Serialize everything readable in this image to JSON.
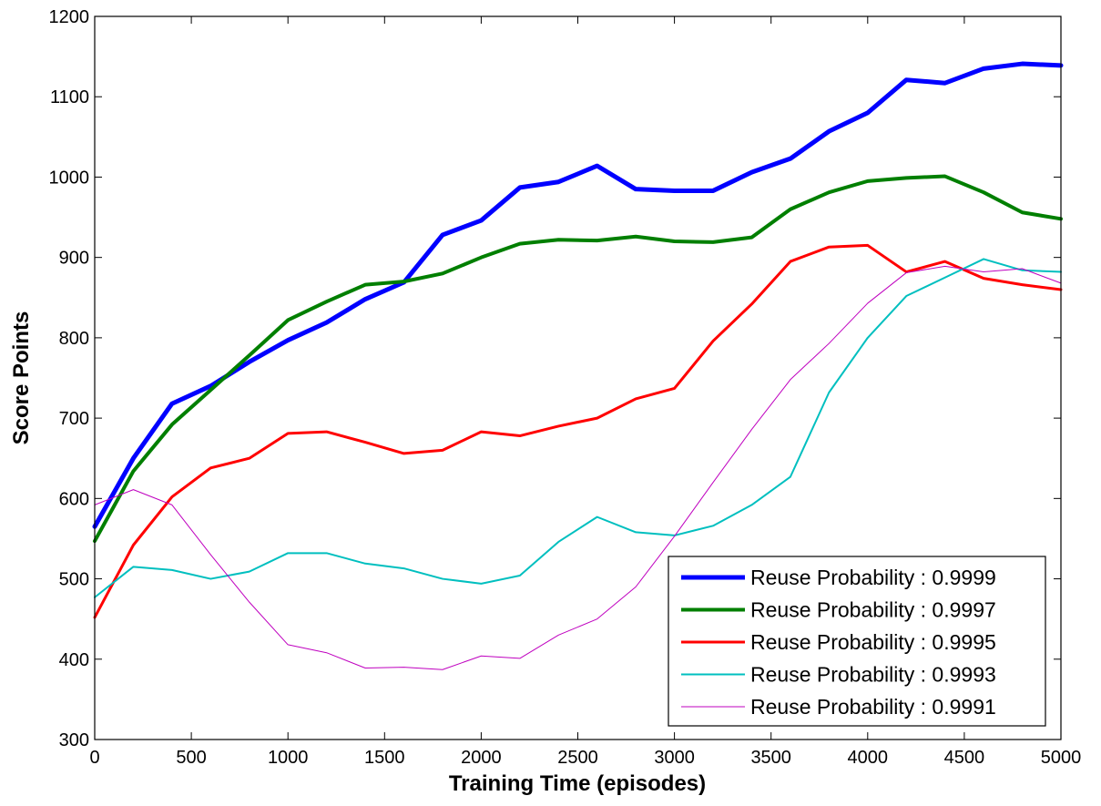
{
  "chart_data": {
    "type": "line",
    "title": "",
    "xlabel": "Training Time (episodes)",
    "ylabel": "Score Points",
    "xlim": [
      0,
      5000
    ],
    "ylim": [
      300,
      1200
    ],
    "xticks": [
      0,
      500,
      1000,
      1500,
      2000,
      2500,
      3000,
      3500,
      4000,
      4500,
      5000
    ],
    "yticks": [
      300,
      400,
      500,
      600,
      700,
      800,
      900,
      1000,
      1100,
      1200
    ],
    "grid": false,
    "legend_position": "bottom-right",
    "x": [
      0,
      200,
      400,
      600,
      800,
      1000,
      1200,
      1400,
      1600,
      1800,
      2000,
      2200,
      2400,
      2600,
      2800,
      3000,
      3200,
      3400,
      3600,
      3800,
      4000,
      4200,
      4400,
      4600,
      4800,
      5000
    ],
    "series": [
      {
        "name": "Reuse Probability : 0.9999",
        "color": "#0000ff",
        "line_width": "thick",
        "values": [
          565,
          650,
          718,
          740,
          770,
          797,
          819,
          848,
          869,
          928,
          946,
          987,
          994,
          1014,
          985,
          983,
          983,
          1006,
          1023,
          1057,
          1080,
          1121,
          1117,
          1135,
          1141,
          1139
        ]
      },
      {
        "name": "Reuse Probability : 0.9997",
        "color": "#007f00",
        "line_width": "medium-thick",
        "values": [
          547,
          634,
          692,
          735,
          778,
          822,
          845,
          866,
          870,
          880,
          900,
          917,
          922,
          921,
          926,
          920,
          919,
          925,
          960,
          981,
          995,
          999,
          1001,
          981,
          956,
          948
        ]
      },
      {
        "name": "Reuse Probability : 0.9995",
        "color": "#ff0000",
        "line_width": "medium",
        "values": [
          452,
          542,
          602,
          638,
          650,
          681,
          683,
          670,
          656,
          660,
          683,
          678,
          690,
          700,
          724,
          737,
          796,
          842,
          895,
          913,
          915,
          882,
          895,
          874,
          866,
          860
        ]
      },
      {
        "name": "Reuse Probability : 0.9993",
        "color": "#00bfbf",
        "line_width": "thin",
        "values": [
          477,
          515,
          511,
          500,
          509,
          532,
          532,
          519,
          513,
          500,
          494,
          504,
          546,
          577,
          558,
          554,
          566,
          592,
          627,
          732,
          800,
          852,
          875,
          898,
          884,
          882
        ]
      },
      {
        "name": "Reuse Probability : 0.9991",
        "color": "#bf00bf",
        "line_width": "hairline",
        "values": [
          592,
          611,
          592,
          530,
          471,
          418,
          408,
          389,
          390,
          387,
          404,
          401,
          430,
          450,
          490,
          553,
          620,
          686,
          748,
          793,
          843,
          881,
          889,
          882,
          886,
          868
        ]
      }
    ]
  }
}
